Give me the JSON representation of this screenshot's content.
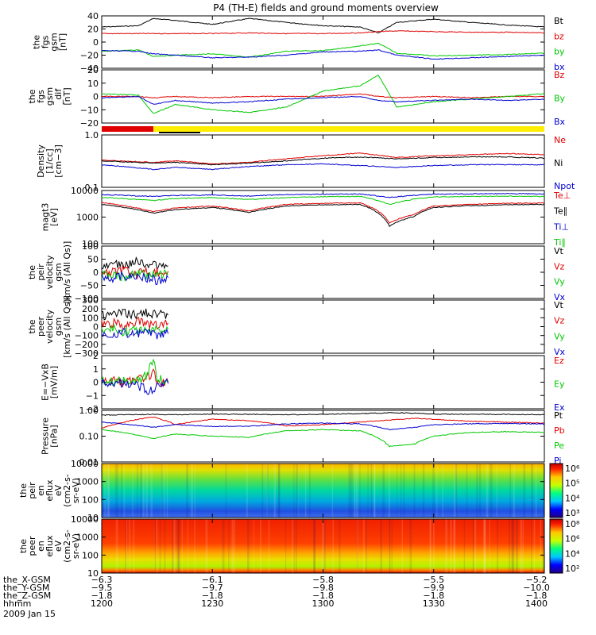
{
  "title": "P4 (TH-E) fields and ground moments overview",
  "date_label": "2009 Jan 15",
  "colors": {
    "black": "#000000",
    "red": "#e00000",
    "green": "#00c800",
    "blue": "#0000d0",
    "yellow": "#ffee00"
  },
  "bar_strip": {
    "segments": [
      {
        "color": "red",
        "from": 1200,
        "to": 1214
      },
      {
        "color": "yellow",
        "from": 1214,
        "to": 1400
      }
    ]
  },
  "panels": [
    {
      "id": "p1",
      "ylabel": [
        "the",
        "fgs",
        "gsm",
        "[nT]"
      ],
      "yticks": [
        "40",
        "20",
        "0",
        "−20",
        "−40"
      ],
      "legend": [
        {
          "text": "Bt",
          "color": "black"
        },
        {
          "text": "bz",
          "color": "red"
        },
        {
          "text": "by",
          "color": "green"
        },
        {
          "text": "bx",
          "color": "blue"
        }
      ]
    },
    {
      "id": "p2",
      "ylabel": [
        "the",
        "fgs",
        "gsm",
        "_dif",
        "[nT]"
      ],
      "yticks": [
        "20",
        "10",
        "0",
        "−10",
        "−20"
      ],
      "legend": [
        {
          "text": "Bz",
          "color": "red"
        },
        {
          "text": "By",
          "color": "green"
        },
        {
          "text": "Bx",
          "color": "blue"
        }
      ]
    },
    {
      "id": "p3",
      "ylabel": [
        "Density",
        "[1/cc]",
        "[cm−3]"
      ],
      "yticks": [
        "1.0",
        "0.1"
      ],
      "legend": [
        {
          "text": "Ne",
          "color": "red"
        },
        {
          "text": "Ni",
          "color": "black"
        },
        {
          "text": "Npot",
          "color": "blue"
        }
      ]
    },
    {
      "id": "p4",
      "ylabel": [
        "magt3",
        "[eV]"
      ],
      "yticks": [
        "10000",
        "1000",
        "100"
      ],
      "legend": [
        {
          "text": "Te⊥",
          "color": "red"
        },
        {
          "text": "Te∥",
          "color": "black"
        },
        {
          "text": "Ti⊥",
          "color": "blue"
        },
        {
          "text": "Ti∥",
          "color": "green"
        }
      ]
    },
    {
      "id": "p5",
      "ylabel": [
        "the",
        "peir",
        "velocity",
        "gsm",
        "[km/s (All Qs)]"
      ],
      "yticks": [
        "100",
        "50",
        "0",
        "−50",
        "−100"
      ],
      "legend": [
        {
          "text": "Vt",
          "color": "black"
        },
        {
          "text": "Vz",
          "color": "red"
        },
        {
          "text": "Vy",
          "color": "green"
        },
        {
          "text": "Vx",
          "color": "blue"
        }
      ]
    },
    {
      "id": "p6",
      "ylabel": [
        "the",
        "peer",
        "velocity",
        "gsm",
        "[km/s (All Qs)]"
      ],
      "yticks": [
        "300",
        "200",
        "100",
        "0",
        "−100",
        "−200",
        "−300"
      ],
      "legend": [
        {
          "text": "Vt",
          "color": "black"
        },
        {
          "text": "Vz",
          "color": "red"
        },
        {
          "text": "Vy",
          "color": "green"
        },
        {
          "text": "Vx",
          "color": "blue"
        }
      ]
    },
    {
      "id": "p7",
      "ylabel": [
        "E=−VxB",
        "[mV/m]"
      ],
      "yticks": [
        "2",
        "1",
        "0",
        "−1",
        "−2"
      ],
      "legend": [
        {
          "text": "Ez",
          "color": "red"
        },
        {
          "text": "Ey",
          "color": "green"
        },
        {
          "text": "Ex",
          "color": "blue"
        }
      ]
    },
    {
      "id": "p8",
      "ylabel": [
        "Pressure",
        "[nPa]"
      ],
      "yticks": [
        "1.00",
        "0.10",
        "0.01"
      ],
      "legend": [
        {
          "text": "Pt",
          "color": "black"
        },
        {
          "text": "Pb",
          "color": "red"
        },
        {
          "text": "Pe",
          "color": "green"
        },
        {
          "text": "Pi",
          "color": "blue"
        }
      ]
    },
    {
      "id": "p9",
      "ylabel": [
        "the",
        "peir",
        "en",
        "eflux",
        "eV",
        "(cm2-s-",
        "sr-eV)"
      ],
      "yticks": [
        "10000",
        "1000",
        "100",
        "10"
      ],
      "cbar": [
        "10⁶",
        "10⁵",
        "10⁴",
        "10³"
      ]
    },
    {
      "id": "p10",
      "ylabel": [
        "the",
        "peer",
        "en",
        "eflux",
        "eV",
        "(cm2-s-",
        "sr-eV)"
      ],
      "yticks": [
        "10000",
        "1000",
        "100",
        "10"
      ],
      "cbar": [
        "10⁸",
        "10⁶",
        "10⁴",
        "10²"
      ]
    }
  ],
  "x_axis": {
    "rows": [
      {
        "name": "the_X-GSM",
        "values": [
          "−6.3",
          "−6.1",
          "−5.8",
          "−5.5",
          "−5.2"
        ]
      },
      {
        "name": "the_Y-GSM",
        "values": [
          "−9.5",
          "−9.7",
          "−9.8",
          "−9.9",
          "−10.0"
        ]
      },
      {
        "name": "the_Z-GSM",
        "values": [
          "−1.8",
          "−1.8",
          "−1.8",
          "−1.8",
          "−1.8"
        ]
      },
      {
        "name": "hhmm",
        "values": [
          "1200",
          "1230",
          "1300",
          "1330",
          "1400"
        ]
      }
    ]
  },
  "chart_data": [
    {
      "type": "line",
      "title": "P4 (TH-E) fields and ground moments overview",
      "ylabel": "the fgs gsm [nT]",
      "ylim": [
        -40,
        40
      ],
      "x": [
        1200,
        1210,
        1214,
        1220,
        1230,
        1240,
        1250,
        1300,
        1310,
        1315,
        1320,
        1330,
        1340,
        1350,
        1400
      ],
      "series": [
        {
          "name": "Bt",
          "values": [
            23,
            25,
            36,
            33,
            27,
            36,
            30,
            25,
            23,
            14,
            30,
            35,
            30,
            26,
            23
          ]
        },
        {
          "name": "bz",
          "values": [
            13,
            13,
            13,
            13,
            13,
            14,
            13,
            13,
            14,
            16,
            17,
            16,
            15,
            15,
            14
          ]
        },
        {
          "name": "by",
          "values": [
            -14,
            -12,
            -22,
            -20,
            -18,
            -23,
            -14,
            -13,
            -6,
            -2,
            -17,
            -21,
            -20,
            -19,
            -17
          ]
        },
        {
          "name": "bx",
          "values": [
            -13,
            -14,
            -18,
            -20,
            -24,
            -23,
            -20,
            -15,
            -14,
            -12,
            -20,
            -26,
            -24,
            -22,
            -20
          ]
        }
      ]
    },
    {
      "type": "line",
      "ylabel": "the fgs gsm_dif [nT]",
      "ylim": [
        -20,
        20
      ],
      "x": [
        1200,
        1210,
        1214,
        1220,
        1230,
        1240,
        1250,
        1300,
        1310,
        1315,
        1320,
        1330,
        1340,
        1350,
        1400
      ],
      "series": [
        {
          "name": "Bz",
          "values": [
            0,
            0,
            -1,
            0,
            -1,
            0,
            0,
            0,
            2,
            0,
            -1,
            0,
            -1,
            0,
            0
          ]
        },
        {
          "name": "By",
          "values": [
            2,
            1,
            -13,
            -6,
            -10,
            -12,
            -8,
            4,
            8,
            16,
            -8,
            -4,
            -2,
            0,
            2
          ]
        },
        {
          "name": "Bx",
          "values": [
            -1,
            0,
            -6,
            -3,
            -5,
            -4,
            -2,
            -1,
            0,
            -3,
            -4,
            -3,
            -2,
            -3,
            -2
          ]
        }
      ]
    },
    {
      "type": "line",
      "ylabel": "Density [1/cc] [cm-3]",
      "ylim": [
        0.1,
        1.0
      ],
      "log": true,
      "x": [
        1200,
        1214,
        1220,
        1230,
        1240,
        1250,
        1300,
        1310,
        1320,
        1330,
        1340,
        1350,
        1400
      ],
      "series": [
        {
          "name": "Ne",
          "values": [
            0.33,
            0.3,
            0.32,
            0.28,
            0.3,
            0.35,
            0.4,
            0.45,
            0.37,
            0.4,
            0.42,
            0.44,
            0.42
          ]
        },
        {
          "name": "Ni",
          "values": [
            0.32,
            0.29,
            0.3,
            0.27,
            0.29,
            0.32,
            0.36,
            0.38,
            0.35,
            0.37,
            0.38,
            0.38,
            0.36
          ]
        },
        {
          "name": "Npot",
          "values": [
            0.27,
            0.22,
            0.24,
            0.22,
            0.25,
            0.27,
            0.28,
            0.26,
            0.24,
            0.26,
            0.27,
            0.27,
            0.27
          ]
        }
      ]
    },
    {
      "type": "line",
      "ylabel": "magt3 [eV]",
      "ylim": [
        100,
        10000
      ],
      "log": true,
      "x": [
        1200,
        1214,
        1220,
        1230,
        1240,
        1250,
        1300,
        1310,
        1318,
        1325,
        1330,
        1340,
        1350,
        1400
      ],
      "series": [
        {
          "name": "Te⊥",
          "values": [
            3500,
            1600,
            2200,
            2600,
            1700,
            3000,
            3300,
            3400,
            600,
            1300,
            2600,
            3000,
            3300,
            3400
          ]
        },
        {
          "name": "Te∥",
          "values": [
            3000,
            1400,
            1900,
            2300,
            1500,
            2600,
            2900,
            3000,
            450,
            1100,
            2300,
            2700,
            2900,
            3000
          ]
        },
        {
          "name": "Ti⊥",
          "values": [
            7000,
            6000,
            6500,
            6800,
            6200,
            7000,
            7200,
            7400,
            5500,
            6600,
            7200,
            7500,
            7600,
            7500
          ]
        },
        {
          "name": "Ti∥",
          "values": [
            5500,
            4200,
            5000,
            5400,
            4600,
            5400,
            5800,
            6000,
            3000,
            4800,
            5700,
            6000,
            6100,
            6000
          ]
        }
      ]
    },
    {
      "type": "line",
      "ylabel": "the peir velocity gsm [km/s (All Qs)]",
      "ylim": [
        -100,
        100
      ],
      "x": [
        1200,
        1203,
        1206,
        1209,
        1212,
        1215,
        1218
      ],
      "series": [
        {
          "name": "Vt",
          "values": [
            20,
            30,
            25,
            40,
            35,
            25,
            25
          ]
        },
        {
          "name": "Vz",
          "values": [
            -5,
            0,
            10,
            -10,
            5,
            0,
            5
          ]
        },
        {
          "name": "Vy",
          "values": [
            -10,
            -5,
            -20,
            0,
            -15,
            -5,
            -10
          ]
        },
        {
          "name": "Vx",
          "values": [
            -15,
            -20,
            -10,
            -25,
            -20,
            -30,
            -20
          ]
        }
      ]
    },
    {
      "type": "line",
      "ylabel": "the peer velocity gsm [km/s (All Qs)]",
      "ylim": [
        -300,
        300
      ],
      "x": [
        1200,
        1203,
        1206,
        1209,
        1212,
        1215,
        1218
      ],
      "series": [
        {
          "name": "Vt",
          "values": [
            120,
            140,
            150,
            130,
            160,
            140,
            130
          ]
        },
        {
          "name": "Vz",
          "values": [
            20,
            40,
            10,
            60,
            30,
            20,
            40
          ]
        },
        {
          "name": "Vy",
          "values": [
            -40,
            -20,
            -60,
            -30,
            -50,
            -40,
            -30
          ]
        },
        {
          "name": "Vx",
          "values": [
            -60,
            -80,
            -70,
            -90,
            -60,
            -100,
            -80
          ]
        }
      ]
    },
    {
      "type": "line",
      "ylabel": "E=-VxB [mV/m]",
      "ylim": [
        -2,
        2
      ],
      "x": [
        1200,
        1203,
        1206,
        1209,
        1212,
        1214,
        1215,
        1218
      ],
      "series": [
        {
          "name": "Ez",
          "values": [
            0,
            0.1,
            -0.1,
            0.2,
            0.3,
            0.8,
            0,
            0
          ]
        },
        {
          "name": "Ey",
          "values": [
            0.1,
            0,
            0.2,
            0.1,
            0.5,
            1.8,
            0.3,
            0.1
          ]
        },
        {
          "name": "Ex",
          "values": [
            -0.1,
            0,
            -0.1,
            -0.2,
            -0.5,
            -0.8,
            -0.3,
            -0.1
          ]
        }
      ]
    },
    {
      "type": "line",
      "ylabel": "Pressure [nPa]",
      "ylim": [
        0.01,
        1.0
      ],
      "log": true,
      "x": [
        1200,
        1214,
        1220,
        1230,
        1240,
        1250,
        1300,
        1310,
        1318,
        1325,
        1330,
        1340,
        1350,
        1400
      ],
      "series": [
        {
          "name": "Pt",
          "values": [
            0.65,
            0.7,
            0.68,
            0.72,
            0.7,
            0.68,
            0.7,
            0.75,
            0.8,
            0.78,
            0.72,
            0.7,
            0.7,
            0.68
          ]
        },
        {
          "name": "Pb",
          "values": [
            0.2,
            0.55,
            0.28,
            0.45,
            0.4,
            0.25,
            0.28,
            0.35,
            0.42,
            0.5,
            0.45,
            0.38,
            0.35,
            0.32
          ]
        },
        {
          "name": "Pe",
          "values": [
            0.18,
            0.08,
            0.12,
            0.1,
            0.09,
            0.16,
            0.18,
            0.16,
            0.04,
            0.05,
            0.1,
            0.14,
            0.15,
            0.14
          ]
        },
        {
          "name": "Pi",
          "values": [
            0.35,
            0.22,
            0.28,
            0.24,
            0.24,
            0.3,
            0.32,
            0.3,
            0.18,
            0.22,
            0.28,
            0.3,
            0.31,
            0.3
          ]
        }
      ]
    },
    {
      "type": "heatmap",
      "ylabel": "the peir en eflux eV (cm2-s-sr-eV)",
      "ylim": [
        10,
        10000
      ],
      "log": true,
      "zlim": [
        "10³",
        "10⁶"
      ],
      "xlim": [
        1200,
        1400
      ]
    },
    {
      "type": "heatmap",
      "ylabel": "the peer en eflux eV (cm2-s-sr-eV)",
      "ylim": [
        10,
        10000
      ],
      "log": true,
      "zlim": [
        "10²",
        "10⁸"
      ],
      "xlim": [
        1200,
        1400
      ]
    }
  ]
}
